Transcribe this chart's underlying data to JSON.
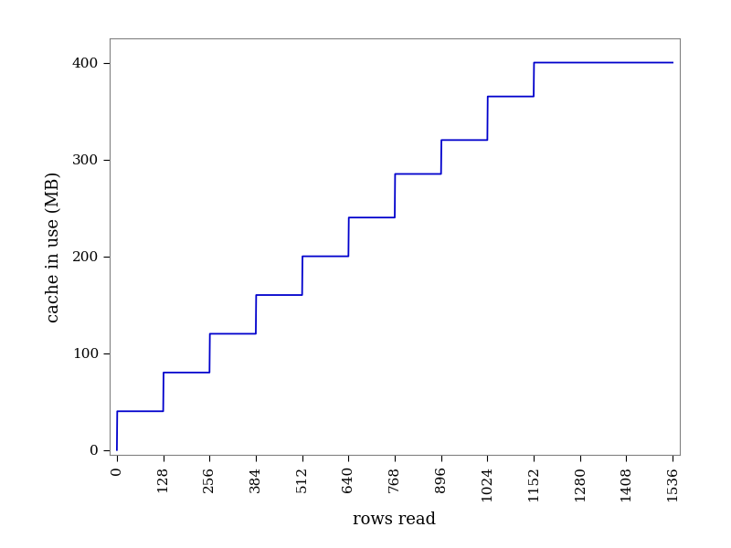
{
  "title": "",
  "xlabel": "rows read",
  "ylabel": "cache in use (MB)",
  "line_color": "#0000CC",
  "line_width": 1.3,
  "background_color": "#ffffff",
  "xlim": [
    -20,
    1556
  ],
  "ylim": [
    -5,
    425
  ],
  "xticks": [
    0,
    128,
    256,
    384,
    512,
    640,
    768,
    896,
    1024,
    1152,
    1280,
    1408,
    1536
  ],
  "yticks": [
    0,
    100,
    200,
    300,
    400
  ],
  "x": [
    0,
    1,
    128,
    129,
    256,
    257,
    384,
    385,
    512,
    513,
    640,
    641,
    768,
    769,
    896,
    897,
    1024,
    1025,
    1152,
    1153,
    1536
  ],
  "y": [
    0,
    40,
    40,
    80,
    80,
    120,
    120,
    160,
    160,
    200,
    200,
    240,
    240,
    285,
    285,
    320,
    320,
    365,
    365,
    400,
    400
  ]
}
